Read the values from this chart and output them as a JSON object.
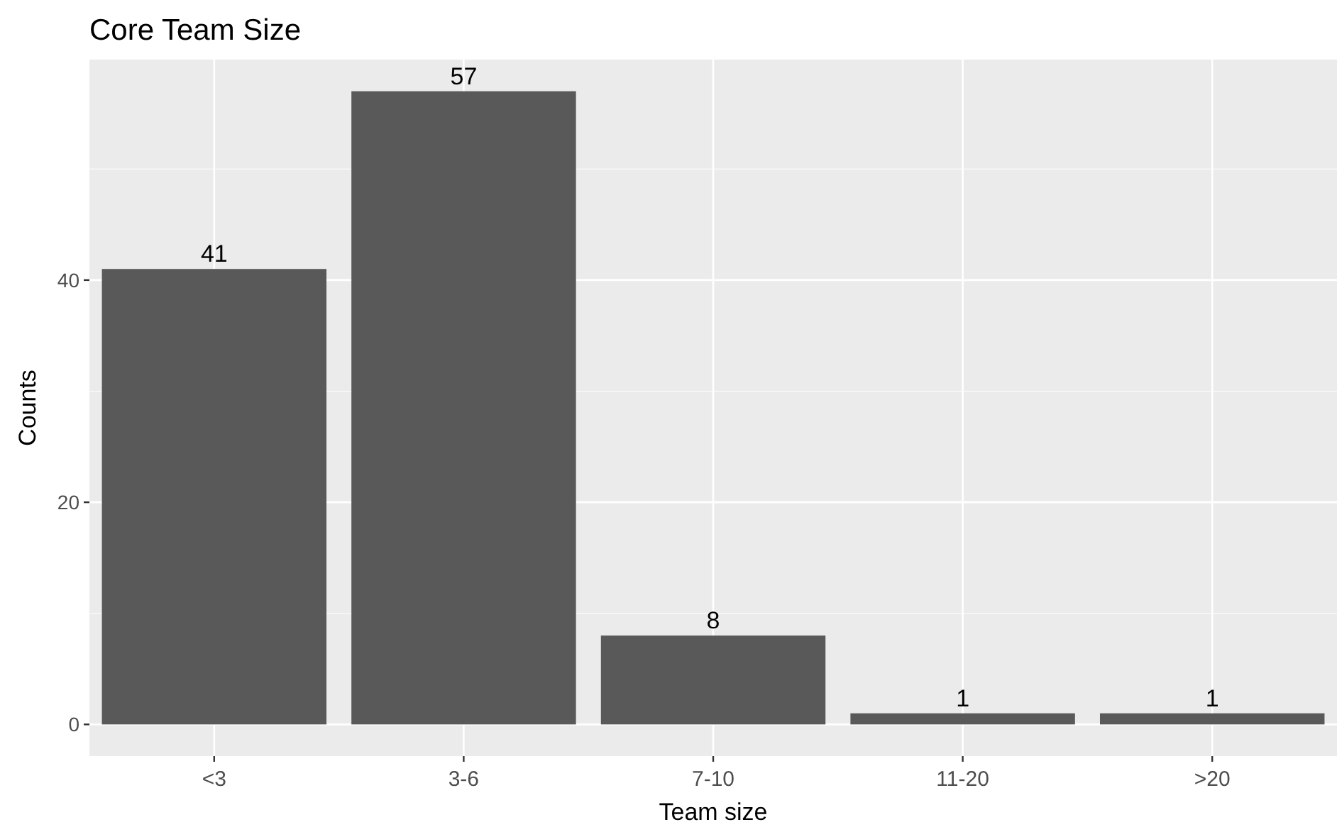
{
  "chart_data": {
    "type": "bar",
    "title": "Core Team Size",
    "xlabel": "Team size",
    "ylabel": "Counts",
    "categories": [
      "<3",
      "3-6",
      "7-10",
      "11-20",
      ">20"
    ],
    "values": [
      41,
      57,
      8,
      1,
      1
    ],
    "color": "#595959",
    "ylim": [
      -2.85,
      59.85
    ],
    "yticks": [
      0,
      20,
      40
    ],
    "grid": true,
    "data_labels": true
  }
}
